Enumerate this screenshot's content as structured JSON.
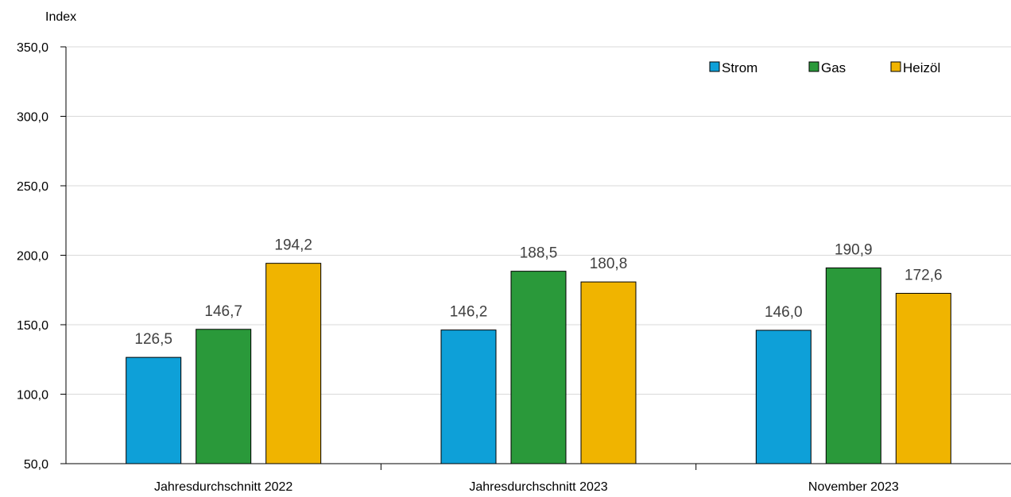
{
  "chart_data": {
    "type": "bar",
    "ylabel": "Index",
    "ylim": [
      50,
      350
    ],
    "yticks": [
      "350,0",
      "300,0",
      "250,0",
      "200,0",
      "150,0",
      "100,0",
      "50,0"
    ],
    "categories": [
      "Jahresdurchschnitt 2022",
      "Jahresdurchschnitt 2023",
      "November 2023"
    ],
    "series": [
      {
        "name": "Strom",
        "color": "#0ea0d8",
        "values": [
          126.5,
          146.2,
          146.0
        ],
        "labels": [
          "126,5",
          "146,2",
          "146,0"
        ]
      },
      {
        "name": "Gas",
        "color": "#2a993a",
        "values": [
          146.7,
          188.5,
          190.9
        ],
        "labels": [
          "146,7",
          "188,5",
          "190,9"
        ]
      },
      {
        "name": "Heizöl",
        "color": "#f0b400",
        "values": [
          194.2,
          180.8,
          172.6
        ],
        "labels": [
          "194,2",
          "180,8",
          "172,6"
        ]
      }
    ],
    "grid": true,
    "legend_position": "top-right"
  }
}
